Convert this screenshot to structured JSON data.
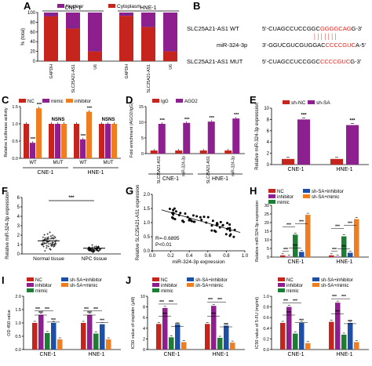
{
  "colors": {
    "red": "#c5251c",
    "purple": "#8e1f8f",
    "green": "#1e7d35",
    "orange": "#ef7d22",
    "blue": "#1d4fa6",
    "darkred": "#b3201a",
    "seqred": "#e3231c"
  },
  "panels": {
    "A": {
      "label": "A"
    },
    "B": {
      "label": "B"
    },
    "C": {
      "label": "C"
    },
    "D": {
      "label": "D"
    },
    "E": {
      "label": "E"
    },
    "F": {
      "label": "F"
    },
    "G": {
      "label": "G"
    },
    "H": {
      "label": "H"
    },
    "I": {
      "label": "I"
    },
    "J": {
      "label": "J"
    }
  },
  "sequences": {
    "wt_label": "SLC25A21-AS1 WT",
    "wt_prefix": "5'-CUAGCCUCCGGC",
    "wt_red": "GGGGCAG",
    "wt_suffix": "G-3'",
    "mir_label": "miR-324-3p",
    "mir_prefix": "3'-GGUCGUCGUGGAC",
    "mir_red": "CCCCGUC",
    "mir_suffix": "A-5'",
    "mut_label": "SLC25A21-AS1 MUT",
    "mut_prefix": "5'-CUAGCCUCCGGC",
    "mut_red": "CCCCGUC",
    "mut_suffix": "G-3'",
    "pair_marks": "| | | | | | |"
  },
  "chart_data": [
    {
      "id": "A",
      "type": "bar",
      "stacked": true,
      "ylabel": "% (total)",
      "yticks": [
        0,
        20,
        40,
        60,
        80,
        100
      ],
      "ylim": [
        0,
        100
      ],
      "categories": [
        "GAPDH",
        "SLC25A21-AS1",
        "U6",
        "GAPDH",
        "SLC25A21-AS1",
        "U6"
      ],
      "groups": [
        {
          "label": "CNE-1",
          "from": 0,
          "to": 2
        },
        {
          "label": "HNE-1",
          "from": 3,
          "to": 5
        }
      ],
      "series": [
        {
          "name": "Nuclear",
          "color": "purple",
          "values": [
            8,
            33,
            80,
            7,
            30,
            80
          ]
        },
        {
          "name": "Cytoplasm",
          "color": "red",
          "values": [
            92,
            67,
            20,
            93,
            70,
            20
          ]
        }
      ]
    },
    {
      "id": "C",
      "type": "bar",
      "ylabel": "Relative luciferase activity",
      "yticks": [
        0.0,
        0.5,
        1.0,
        1.5
      ],
      "ylim": [
        0,
        1.5
      ],
      "categories": [
        "WT",
        "MUT",
        "WT",
        "MUT"
      ],
      "groups": [
        {
          "label": "CNE-1",
          "from": 0,
          "to": 1
        },
        {
          "label": "HNE-1",
          "from": 2,
          "to": 3
        }
      ],
      "series": [
        {
          "name": "NC",
          "color": "red",
          "values": [
            1.0,
            1.0,
            1.0,
            1.0
          ]
        },
        {
          "name": "mimic",
          "color": "purple",
          "values": [
            0.45,
            1.0,
            0.55,
            1.0
          ]
        },
        {
          "name": "inhibitor",
          "color": "orange",
          "values": [
            1.45,
            1.0,
            1.35,
            1.0
          ]
        }
      ],
      "annotations": [
        "***",
        "***",
        "NSNS",
        "***",
        "***",
        "NSNS"
      ]
    },
    {
      "id": "D",
      "type": "bar",
      "ylabel": "Fold enrichment (AGO2/IgG)",
      "yticks": [
        0,
        5,
        10,
        15
      ],
      "ylim": [
        0,
        15
      ],
      "categories": [
        "SLC25A21-AS1",
        "miR-324-3p",
        "SLC25A21-AS1",
        "miR-324-3p"
      ],
      "groups": [
        {
          "label": "CNE-1",
          "from": 0,
          "to": 1
        },
        {
          "label": "HNE-1",
          "from": 2,
          "to": 3
        }
      ],
      "series": [
        {
          "name": "IgG",
          "color": "red",
          "values": [
            1,
            1,
            1,
            1
          ]
        },
        {
          "name": "AGO2",
          "color": "purple",
          "values": [
            9.5,
            9.8,
            10.2,
            11.2
          ]
        }
      ],
      "annotations": [
        "***",
        "***",
        "***",
        "***"
      ]
    },
    {
      "id": "E",
      "type": "bar",
      "ylabel": "Relative miR-324-3p expression",
      "yticks": [
        0,
        2,
        4,
        6,
        8,
        10
      ],
      "ylim": [
        0,
        10
      ],
      "categories": [
        "CNE-1",
        "HNE-1"
      ],
      "series": [
        {
          "name": "sh-NC",
          "color": "red",
          "values": [
            1.0,
            1.0
          ]
        },
        {
          "name": "sh-SA",
          "color": "purple",
          "values": [
            8.0,
            7.0
          ]
        }
      ],
      "annotations": [
        "***",
        "***"
      ]
    },
    {
      "id": "F",
      "type": "scatter",
      "ylabel": "Relative miR-324-3p expression",
      "yticks": [
        0,
        1,
        2,
        3,
        4,
        5,
        6
      ],
      "ylim": [
        0,
        6
      ],
      "categories": [
        "Normal tissue",
        "NPC tissue"
      ],
      "means": [
        1.4,
        0.6
      ],
      "annotations": [
        "***"
      ]
    },
    {
      "id": "G",
      "type": "scatter",
      "xlabel": "miR-324-3p expression",
      "ylabel": "Relative SLC25A21-AS1 expression",
      "xticks": [
        0.0,
        0.2,
        0.4,
        0.6,
        0.8,
        1.0
      ],
      "xlim": [
        0,
        1.0
      ],
      "yticks": [
        0.0,
        0.5,
        1.0,
        1.5,
        2.0
      ],
      "ylim": [
        0,
        2.0
      ],
      "stats": [
        "R=-0.6895",
        "P<0.01"
      ],
      "fit": {
        "x": [
          0.1,
          0.95
        ],
        "y": [
          1.45,
          0.65
        ]
      }
    },
    {
      "id": "H",
      "type": "bar",
      "ylabel": "Relative miR-324-3p expression",
      "yticks": [
        0,
        5,
        10,
        15,
        20,
        25,
        30
      ],
      "ylim": [
        0,
        30
      ],
      "categories": [
        "CNE-1",
        "HNE-1"
      ],
      "series": [
        {
          "name": "NC",
          "color": "red",
          "values": [
            1.0,
            1.0
          ]
        },
        {
          "name": "inhibitor",
          "color": "purple",
          "values": [
            0.3,
            0.3
          ]
        },
        {
          "name": "mimic",
          "color": "green",
          "values": [
            13.0,
            12.0
          ]
        },
        {
          "name": "sh-SA+inhibitor",
          "color": "blue",
          "values": [
            3.0,
            2.5
          ]
        },
        {
          "name": "sh-SA+mimic",
          "color": "orange",
          "values": [
            24.5,
            22.0
          ]
        }
      ]
    },
    {
      "id": "I",
      "type": "bar",
      "ylabel": "OD 450 value",
      "yticks": [
        0.0,
        0.5,
        1.0,
        1.5,
        2.0
      ],
      "ylim": [
        0,
        2.0
      ],
      "categories": [
        "CNE-1",
        "HNE-1"
      ],
      "series": [
        {
          "name": "NC",
          "color": "red",
          "values": [
            1.0,
            1.0
          ]
        },
        {
          "name": "inhibitor",
          "color": "purple",
          "values": [
            1.3,
            1.3
          ]
        },
        {
          "name": "mimic",
          "color": "green",
          "values": [
            0.62,
            0.6
          ]
        },
        {
          "name": "sh-SA+inhibitor",
          "color": "blue",
          "values": [
            1.0,
            0.95
          ]
        },
        {
          "name": "sh-SA+mimic",
          "color": "orange",
          "values": [
            0.38,
            0.38
          ]
        }
      ]
    },
    {
      "id": "J1",
      "type": "bar",
      "ylabel": "IC50 value of cisplatin (μM)",
      "yticks": [
        0,
        2,
        4,
        6,
        8,
        10
      ],
      "ylim": [
        0,
        10
      ],
      "categories": [
        "CNE-1",
        "HNE-1"
      ],
      "series": [
        {
          "name": "NC",
          "color": "red",
          "values": [
            4.8,
            4.8
          ]
        },
        {
          "name": "inhibitor",
          "color": "purple",
          "values": [
            7.8,
            8.2
          ]
        },
        {
          "name": "mimic",
          "color": "green",
          "values": [
            2.3,
            2.2
          ]
        },
        {
          "name": "sh-SA+inhibitor",
          "color": "blue",
          "values": [
            4.7,
            4.5
          ]
        },
        {
          "name": "sh-SA+mimic",
          "color": "orange",
          "values": [
            1.4,
            1.3
          ]
        }
      ]
    },
    {
      "id": "J2",
      "type": "bar",
      "ylabel": "IC50 value of 5-FU (mg/ml)",
      "yticks": [
        0.0,
        0.2,
        0.4,
        0.6,
        0.8,
        1.0
      ],
      "ylim": [
        0,
        1.0
      ],
      "categories": [
        "CNE-1",
        "HNE-1"
      ],
      "series": [
        {
          "name": "NC",
          "color": "red",
          "values": [
            0.5,
            0.52
          ]
        },
        {
          "name": "inhibitor",
          "color": "purple",
          "values": [
            0.8,
            0.88
          ]
        },
        {
          "name": "mimic",
          "color": "green",
          "values": [
            0.3,
            0.28
          ]
        },
        {
          "name": "sh-SA+inhibitor",
          "color": "blue",
          "values": [
            0.5,
            0.5
          ]
        },
        {
          "name": "sh-SA+mimic",
          "color": "orange",
          "values": [
            0.12,
            0.14
          ]
        }
      ]
    }
  ]
}
